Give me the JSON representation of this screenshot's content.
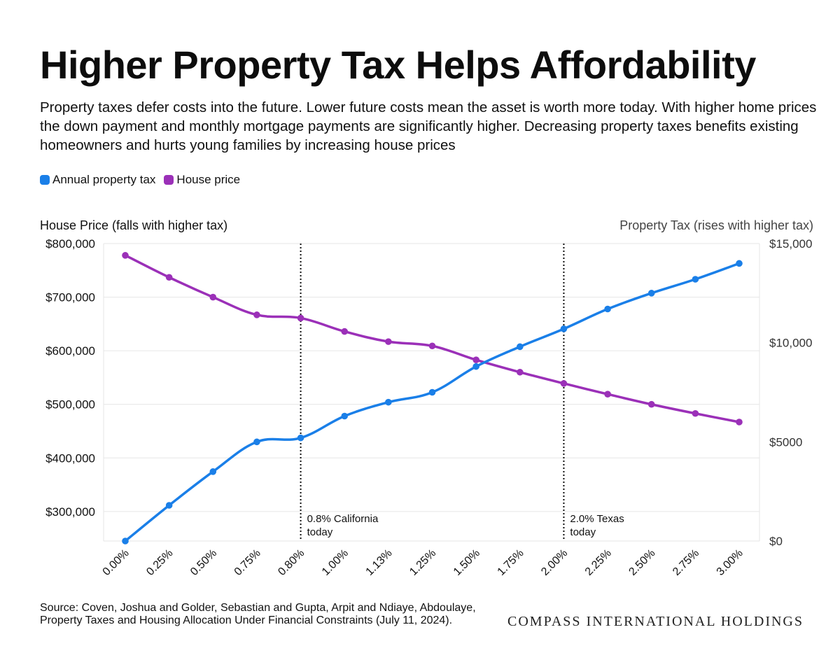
{
  "title": "Higher Property Tax Helps Affordability",
  "subtitle": "Property taxes defer costs into the future. Lower future costs mean the asset is worth more today. With higher home prices the down payment and monthly mortgage payments are significantly higher. Decreasing property taxes benefits existing homeowners and hurts young families by increasing house prices",
  "source": "Source: Coven, Joshua and Golder, Sebastian and Gupta, Arpit and Ndiaye, Abdoulaye, Property Taxes and Housing Allocation Under Financial Constraints (July 11, 2024).",
  "brand": "COMPASS INTERNATIONAL HOLDINGS",
  "chart_data": {
    "type": "line",
    "categories": [
      "0.00%",
      "0.25%",
      "0.50%",
      "0.75%",
      "0.80%",
      "1.00%",
      "1.13%",
      "1.25%",
      "1.50%",
      "1.75%",
      "2.00%",
      "2.25%",
      "2.50%",
      "2.75%",
      "3.00%"
    ],
    "series": [
      {
        "name": "Annual property tax",
        "axis": "right",
        "color": "#1a7fe8",
        "values": [
          0,
          1800,
          3500,
          5000,
          5200,
          6300,
          7000,
          7500,
          8800,
          9800,
          10700,
          11700,
          12500,
          13200,
          14000
        ]
      },
      {
        "name": "House price",
        "axis": "left",
        "color": "#9b30b8",
        "values": [
          778000,
          737000,
          700000,
          667000,
          661000,
          636000,
          617000,
          609000,
          583000,
          560000,
          539000,
          519000,
          500000,
          483000,
          467000
        ]
      }
    ],
    "left_axis": {
      "title": "House Price (falls with higher tax)",
      "ylim": [
        245000,
        800000
      ],
      "ticks": [
        800000,
        700000,
        600000,
        500000,
        400000,
        300000
      ],
      "tick_labels": [
        "$800,000",
        "$700,000",
        "$600,000",
        "$500,000",
        "$400,000",
        "$300,000"
      ]
    },
    "right_axis": {
      "title": "Property Tax (rises with higher tax)",
      "ylim": [
        0,
        15000
      ],
      "ticks": [
        15000,
        10000,
        5000,
        0
      ],
      "tick_labels": [
        "$15,000",
        "$10,000",
        "$5000",
        "$0"
      ]
    },
    "annotations": [
      {
        "category": "0.80%",
        "lines": [
          "0.8% California",
          "today"
        ]
      },
      {
        "category": "2.00%",
        "lines": [
          "2.0% Texas",
          "today"
        ]
      }
    ],
    "grid": true,
    "legend_position": "top-left"
  }
}
